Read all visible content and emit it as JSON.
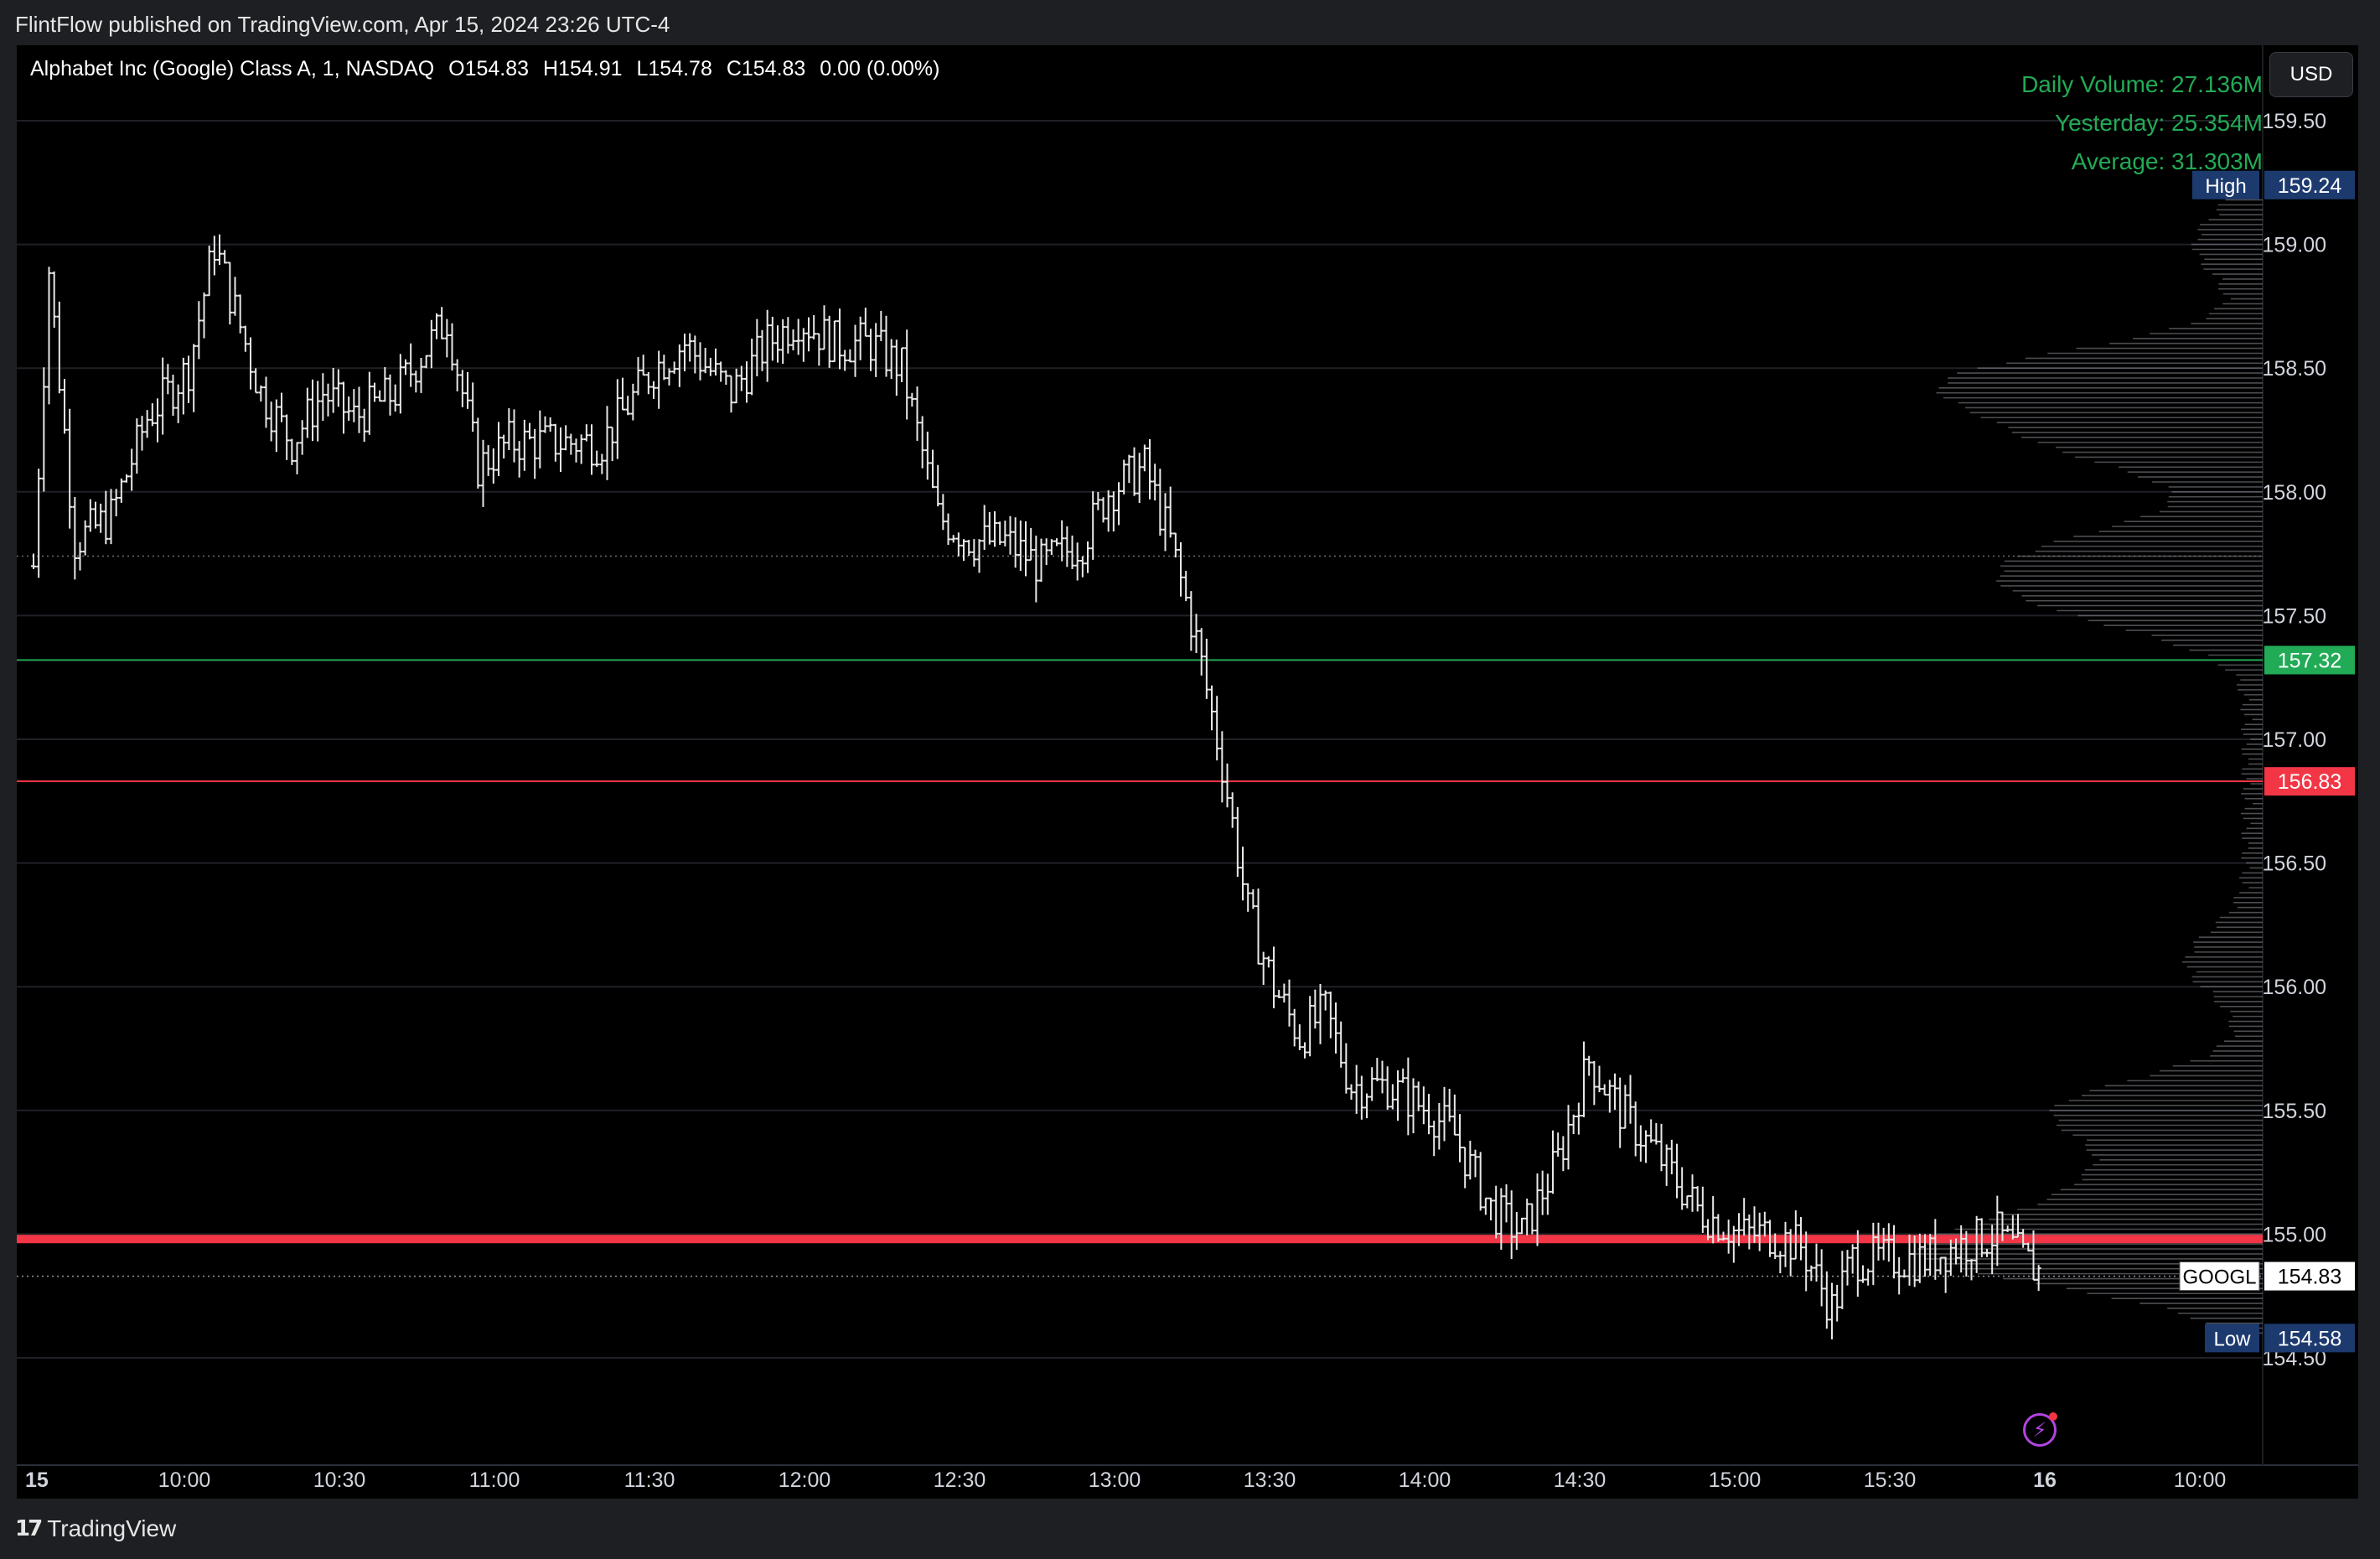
{
  "header": {
    "published_text": "FlintFlow published on TradingView.com, Apr 15, 2024 23:26 UTC-4"
  },
  "legend": {
    "title": "Alphabet Inc (Google) Class A, 1, NASDAQ",
    "open": "O154.83",
    "high": "H154.91",
    "low": "L154.78",
    "close": "C154.83",
    "change": "0.00 (0.00%)"
  },
  "volume_info": {
    "daily": "Daily Volume: 27.136M",
    "yesterday": "Yesterday: 25.354M",
    "average": "Average: 31.303M"
  },
  "currency_button": "USD",
  "footer": {
    "brand": "TradingView",
    "logo_icon": "tradingview-logo-icon"
  },
  "colors": {
    "background": "#000000",
    "candle": "#e8e8e8",
    "green_level": "#22ab56",
    "red_level": "#f23645",
    "high_low_badge": "#1c3a6e",
    "volume_text": "#22ab56"
  },
  "chart_data": {
    "type": "ohlc",
    "symbol": "GOOGL",
    "interval": "1",
    "title": "Alphabet Inc (Google) Class A, 1, NASDAQ",
    "y_ticks": [
      "159.50",
      "159.00",
      "158.50",
      "158.00",
      "157.50",
      "157.00",
      "156.50",
      "156.00",
      "155.50",
      "155.00",
      "154.50"
    ],
    "x_ticks": [
      "15",
      "10:00",
      "10:30",
      "11:00",
      "11:30",
      "12:00",
      "12:30",
      "13:00",
      "13:30",
      "14:00",
      "14:30",
      "15:00",
      "15:30",
      "16",
      "10:00"
    ],
    "ylim": [
      154.2,
      159.7
    ],
    "levels": [
      {
        "name": "High",
        "value": 159.24,
        "label": "159.24",
        "badge": "High",
        "color": "#1c3a6e"
      },
      {
        "name": "green",
        "value": 157.32,
        "label": "157.32",
        "color": "#22ab56"
      },
      {
        "name": "red",
        "value": 156.83,
        "label": "156.83",
        "color": "#f23645"
      },
      {
        "name": "support",
        "value": 154.98,
        "color": "#f23645",
        "thick": true
      },
      {
        "name": "last",
        "value": 154.83,
        "label": "154.83",
        "badge": "GOOGL",
        "color": "#ffffff"
      },
      {
        "name": "Low",
        "value": 154.58,
        "label": "154.58",
        "badge": "Low",
        "color": "#1c3a6e"
      }
    ],
    "price_path": [
      [
        "09:30",
        157.7
      ],
      [
        "09:33",
        158.9
      ],
      [
        "09:38",
        157.8
      ],
      [
        "09:45",
        157.9
      ],
      [
        "09:52",
        158.3
      ],
      [
        "10:00",
        158.5
      ],
      [
        "10:05",
        159.0
      ],
      [
        "10:08",
        158.8
      ],
      [
        "10:14",
        158.4
      ],
      [
        "10:20",
        158.2
      ],
      [
        "10:26",
        158.4
      ],
      [
        "10:32",
        158.3
      ],
      [
        "10:40",
        158.4
      ],
      [
        "10:50",
        158.7
      ],
      [
        "10:56",
        158.1
      ],
      [
        "11:02",
        158.2
      ],
      [
        "11:12",
        158.2
      ],
      [
        "11:20",
        158.2
      ],
      [
        "11:30",
        158.5
      ],
      [
        "11:36",
        158.6
      ],
      [
        "11:45",
        158.4
      ],
      [
        "11:52",
        158.6
      ],
      [
        "11:58",
        158.7
      ],
      [
        "12:05",
        158.6
      ],
      [
        "12:12",
        158.6
      ],
      [
        "12:18",
        158.5
      ],
      [
        "12:25",
        157.9
      ],
      [
        "12:32",
        157.8
      ],
      [
        "12:38",
        157.8
      ],
      [
        "12:45",
        157.7
      ],
      [
        "12:53",
        157.8
      ],
      [
        "12:58",
        158.0
      ],
      [
        "13:05",
        158.1
      ],
      [
        "13:10",
        157.8
      ],
      [
        "13:15",
        157.4
      ],
      [
        "13:20",
        156.9
      ],
      [
        "13:25",
        156.3
      ],
      [
        "13:30",
        156.0
      ],
      [
        "13:35",
        155.8
      ],
      [
        "13:40",
        155.9
      ],
      [
        "13:45",
        155.6
      ],
      [
        "13:52",
        155.6
      ],
      [
        "14:00",
        155.5
      ],
      [
        "14:05",
        155.4
      ],
      [
        "14:12",
        155.1
      ],
      [
        "14:18",
        155.0
      ],
      [
        "14:25",
        155.3
      ],
      [
        "14:31",
        155.7
      ],
      [
        "14:37",
        155.5
      ],
      [
        "14:45",
        155.3
      ],
      [
        "14:52",
        155.1
      ],
      [
        "15:00",
        155.0
      ],
      [
        "15:06",
        155.0
      ],
      [
        "15:12",
        154.95
      ],
      [
        "15:18",
        154.7
      ],
      [
        "15:22",
        154.9
      ],
      [
        "15:30",
        154.9
      ],
      [
        "15:36",
        154.9
      ],
      [
        "15:42",
        154.95
      ],
      [
        "15:50",
        155.0
      ],
      [
        "15:55",
        154.9
      ],
      [
        "15:59",
        154.83
      ]
    ],
    "volume_profile_note": "horizontal volume profile on right edge, peaks near 158.45, 157.7, 155.5 and 154.9"
  }
}
